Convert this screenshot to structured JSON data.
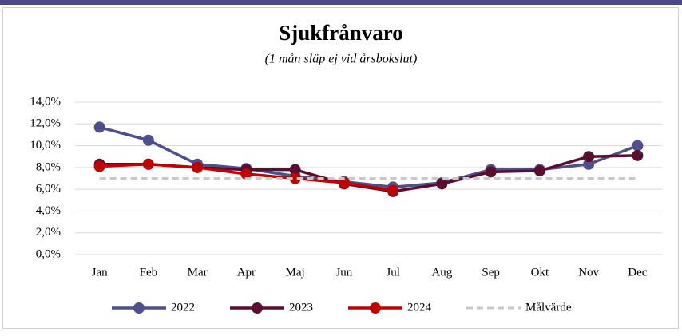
{
  "chart_data": {
    "type": "line",
    "title": "Sjukfrånvaro",
    "subtitle": "(1 mån släp ej vid årsbokslut)",
    "categories": [
      "Jan",
      "Feb",
      "Mar",
      "Apr",
      "Maj",
      "Jun",
      "Jul",
      "Aug",
      "Sep",
      "Okt",
      "Nov",
      "Dec"
    ],
    "series": [
      {
        "name": "2022",
        "color": "#4e4f8b",
        "marker": true,
        "dashed": false,
        "values": [
          11.7,
          10.5,
          8.3,
          7.9,
          7.2,
          6.7,
          6.2,
          6.6,
          7.8,
          7.8,
          8.3,
          10.0
        ]
      },
      {
        "name": "2023",
        "color": "#5a0f2e",
        "marker": true,
        "dashed": false,
        "values": [
          8.3,
          8.3,
          8.0,
          7.8,
          7.8,
          6.5,
          5.8,
          6.5,
          7.6,
          7.7,
          9.0,
          9.1
        ]
      },
      {
        "name": "2024",
        "color": "#c00000",
        "marker": true,
        "dashed": false,
        "values": [
          8.1,
          8.3,
          8.0,
          7.4,
          7.0,
          6.6,
          5.9,
          null,
          null,
          null,
          null,
          null
        ]
      },
      {
        "name": "Målvärde",
        "color": "#c8c8c8",
        "marker": false,
        "dashed": true,
        "values": [
          7,
          7,
          7,
          7,
          7,
          7,
          7,
          7,
          7,
          7,
          7,
          7
        ]
      }
    ],
    "ylim": [
      0,
      14
    ],
    "yticks": [
      {
        "value": 0,
        "label": "0,0%"
      },
      {
        "value": 2,
        "label": "2,0%"
      },
      {
        "value": 4,
        "label": "4,0%"
      },
      {
        "value": 6,
        "label": "6,0%"
      },
      {
        "value": 8,
        "label": "8,0%"
      },
      {
        "value": 10,
        "label": "10,0%"
      },
      {
        "value": 12,
        "label": "12,0%"
      },
      {
        "value": 14,
        "label": "14,0%"
      }
    ],
    "grid": true,
    "legend": "bottom"
  }
}
